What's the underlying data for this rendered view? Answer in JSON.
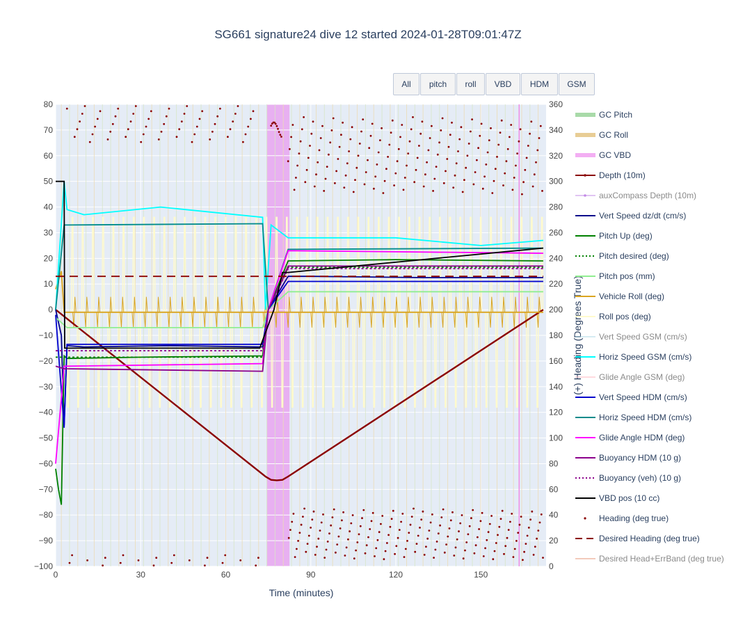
{
  "title": "SG661 signature24 dive 12 started 2024-01-28T09:01:47Z",
  "menu": [
    {
      "id": "all",
      "label": "All"
    },
    {
      "id": "pitch",
      "label": "pitch"
    },
    {
      "id": "roll",
      "label": "roll"
    },
    {
      "id": "vbd",
      "label": "VBD"
    },
    {
      "id": "hdm",
      "label": "HDM"
    },
    {
      "id": "gsm",
      "label": "GSM"
    }
  ],
  "chart_data": {
    "type": "line",
    "title": "SG661 signature24 dive 12 started 2024-01-28T09:01:47Z",
    "xlabel": "Time (minutes)",
    "ylabel": "",
    "y2label": "(+) Heading (Degrees True)",
    "xlim": [
      0,
      173
    ],
    "ylim": [
      -100,
      80
    ],
    "y2lim": [
      0,
      360
    ],
    "xticks": [
      "0",
      "30",
      "60",
      "90",
      "120",
      "150"
    ],
    "yticks": [
      "80",
      "70",
      "60",
      "50",
      "40",
      "30",
      "20",
      "10",
      "0",
      "−10",
      "−20",
      "−30",
      "−40",
      "−50",
      "−60",
      "−70",
      "−80",
      "−90",
      "−100"
    ],
    "y2ticks": [
      "360",
      "340",
      "320",
      "300",
      "280",
      "260",
      "240",
      "220",
      "200",
      "180",
      "160",
      "140",
      "120",
      "100",
      "80",
      "60",
      "40",
      "20",
      "0"
    ],
    "grid": true,
    "legend_position": "right",
    "vbd_band": [
      74.5,
      82.5
    ],
    "series": [
      {
        "name": "GC Pitch",
        "color": "#a0d6a0",
        "style": "thick",
        "visible": true
      },
      {
        "name": "GC Roll",
        "color": "#e6c88a",
        "style": "thick",
        "visible": true
      },
      {
        "name": "GC VBD",
        "color": "#f2a6f2",
        "style": "thick",
        "visible": true
      },
      {
        "name": "Depth (10m)",
        "color": "#8b0000",
        "style": "solid",
        "visible": true,
        "x": [
          0,
          74,
          76,
          78,
          80,
          82,
          172
        ],
        "y": [
          0,
          -65,
          -66.3,
          -66.5,
          -66.3,
          -65,
          0
        ]
      },
      {
        "name": "auxCompass Depth (10m)",
        "color": "#c38ae6",
        "style": "solid",
        "visible": false
      },
      {
        "name": "Vert Speed dz/dt (cm/s)",
        "color": "#00008b",
        "style": "solid",
        "visible": true,
        "x": [
          0,
          2,
          3,
          4,
          10,
          40,
          73,
          75,
          82,
          90,
          130,
          172
        ],
        "y": [
          0,
          -10,
          -45,
          -14,
          -14.5,
          -14,
          -14.5,
          0,
          13,
          13,
          12.5,
          12.5
        ]
      },
      {
        "name": "Pitch Up (deg)",
        "color": "#008000",
        "style": "solid",
        "visible": true,
        "x": [
          0,
          1,
          2,
          3,
          4,
          30,
          73,
          75,
          82,
          120,
          172
        ],
        "y": [
          -62,
          -70,
          -76,
          -18,
          -19,
          -18.5,
          -18,
          0,
          19,
          19.5,
          19
        ]
      },
      {
        "name": "Pitch desired (deg)",
        "color": "#008000",
        "style": "dot",
        "visible": true,
        "x": [
          0,
          73,
          75,
          82,
          172
        ],
        "y": [
          -18.5,
          -18.5,
          0,
          16.5,
          16.5
        ]
      },
      {
        "name": "Pitch pos (mm)",
        "color": "#90ee90",
        "style": "solid",
        "visible": true,
        "x": [
          0,
          4,
          73,
          75,
          82,
          172
        ],
        "y": [
          -3,
          -7,
          -7,
          0,
          7,
          7
        ]
      },
      {
        "name": "Vehicle Roll (deg)",
        "color": "#daa520",
        "style": "solid",
        "visible": true,
        "x": [
          0,
          2,
          3,
          172
        ],
        "y": [
          8,
          15,
          -1,
          -1
        ]
      },
      {
        "name": "Roll pos (deg)",
        "color": "#fffacd",
        "style": "solid",
        "visible": true
      },
      {
        "name": "Vert Speed GSM (cm/s)",
        "color": "#add8e6",
        "style": "solid",
        "visible": false
      },
      {
        "name": "Horiz Speed GSM (cm/s)",
        "color": "#00ffff",
        "style": "solid",
        "visible": true,
        "x": [
          0,
          3,
          4,
          10,
          37,
          73,
          74,
          76,
          82,
          120,
          150,
          172
        ],
        "y": [
          0,
          50,
          39,
          37,
          40,
          36,
          0,
          33,
          28,
          28,
          25,
          27
        ]
      },
      {
        "name": "Glide Angle GSM (deg)",
        "color": "#ffb6c1",
        "style": "solid",
        "visible": false
      },
      {
        "name": "Vert Speed HDM (cm/s)",
        "color": "#0000cd",
        "style": "solid",
        "visible": true,
        "x": [
          0,
          3,
          4,
          73,
          75,
          82,
          172
        ],
        "y": [
          -2,
          -46,
          -13.5,
          -13.5,
          0,
          11,
          11
        ]
      },
      {
        "name": "Horiz Speed HDM (cm/s)",
        "color": "#008b8b",
        "style": "solid",
        "visible": true,
        "x": [
          0,
          3,
          4,
          73,
          75,
          82,
          172
        ],
        "y": [
          0,
          33,
          33,
          33.5,
          0,
          23.5,
          24
        ]
      },
      {
        "name": "Glide Angle HDM (deg)",
        "color": "#ff00ff",
        "style": "solid",
        "visible": true,
        "x": [
          0,
          3,
          4,
          73,
          75,
          82,
          172
        ],
        "y": [
          -60,
          -22,
          -22,
          -21,
          0,
          23,
          22
        ]
      },
      {
        "name": "Buoyancy HDM (10 g)",
        "color": "#8b008b",
        "style": "solid",
        "visible": true,
        "x": [
          0,
          3,
          73,
          75,
          82,
          172
        ],
        "y": [
          -22,
          -23,
          -24,
          0,
          17,
          17
        ]
      },
      {
        "name": "Buoyancy (veh) (10 g)",
        "color": "#8b008b",
        "style": "dot",
        "visible": true,
        "x": [
          0,
          3,
          73,
          75,
          82,
          172
        ],
        "y": [
          -16,
          -16,
          -16,
          0,
          16,
          16
        ]
      },
      {
        "name": "VBD pos (10 cc)",
        "color": "#000000",
        "style": "solid",
        "visible": true,
        "x": [
          0,
          3,
          3.2,
          72,
          77,
          80,
          82,
          172
        ],
        "y": [
          50,
          50,
          -15,
          -15,
          0,
          14.5,
          14.5,
          24
        ]
      },
      {
        "name": "Heading (deg true)",
        "color": "#8b0000",
        "style": "markers",
        "visible": true
      },
      {
        "name": "Desired Heading (deg true)",
        "color": "#8b0000",
        "style": "dash",
        "visible": true,
        "x": [
          0,
          172
        ],
        "y2": [
          226,
          226
        ]
      },
      {
        "name": "Desired Head+ErrBand (deg true)",
        "color": "#e9967a",
        "style": "solid",
        "visible": false
      }
    ]
  }
}
